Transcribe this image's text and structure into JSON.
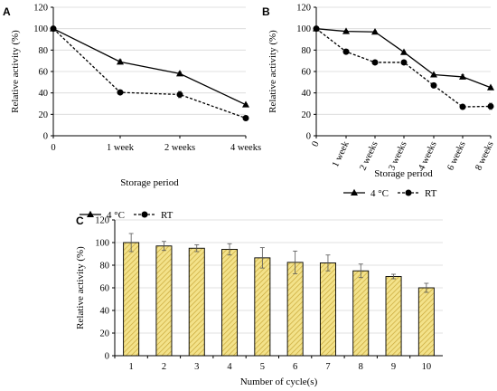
{
  "chart_data": [
    {
      "panel": "A",
      "type": "line",
      "categories": [
        "0",
        "1 week",
        "2 weeks",
        "4 weeks"
      ],
      "series": [
        {
          "name": "4 °C",
          "marker": "triangle",
          "line": "solid",
          "values": [
            100,
            69,
            58,
            29
          ],
          "errors": [
            2,
            2,
            1.5,
            1
          ]
        },
        {
          "name": "RT",
          "marker": "circle",
          "line": "dashed",
          "values": [
            100,
            40.5,
            38.5,
            16.5
          ],
          "errors": [
            2,
            1.5,
            3,
            1
          ]
        }
      ],
      "xlabel": "Storage period",
      "ylabel": "Relative activity (%)",
      "ylim": [
        0,
        120
      ],
      "yticks": [
        0,
        20,
        40,
        60,
        80,
        100,
        120
      ],
      "legend_position": "bottom"
    },
    {
      "panel": "B",
      "type": "line",
      "categories": [
        "0",
        "1 week",
        "2 weeks",
        "3 weeks",
        "4 weeks",
        "6 weeks",
        "8 weeks"
      ],
      "series": [
        {
          "name": "4 °C",
          "marker": "triangle",
          "line": "solid",
          "values": [
            100,
            97.5,
            97,
            78,
            57,
            55,
            45
          ],
          "errors": [
            1.5,
            1,
            1,
            1,
            1,
            2,
            1
          ]
        },
        {
          "name": "RT",
          "marker": "circle",
          "line": "dashed",
          "values": [
            100,
            78.5,
            68.5,
            68.5,
            47,
            27,
            27.5
          ],
          "errors": [
            1.5,
            1,
            1,
            2,
            2,
            1,
            3
          ]
        }
      ],
      "xlabel": "Storage period",
      "ylabel": "Relative activity (%)",
      "ylim": [
        0,
        120
      ],
      "yticks": [
        0,
        20,
        40,
        60,
        80,
        100,
        120
      ],
      "legend_position": "bottom"
    },
    {
      "panel": "C",
      "type": "bar",
      "categories": [
        "1",
        "2",
        "3",
        "4",
        "5",
        "6",
        "7",
        "8",
        "9",
        "10"
      ],
      "values": [
        100,
        97,
        95,
        94,
        86.5,
        82.5,
        82,
        75,
        70,
        60
      ],
      "errors": [
        8,
        4,
        3,
        5,
        9,
        10,
        7,
        6,
        2,
        4
      ],
      "xlabel": "Number of cycle(s)",
      "ylabel": "Relative activity (%)",
      "ylim": [
        0,
        120
      ],
      "yticks": [
        0,
        20,
        40,
        60,
        80,
        100,
        120
      ],
      "bar_color": "#f3e28a",
      "bar_hatch_color": "#c9a83a"
    }
  ]
}
